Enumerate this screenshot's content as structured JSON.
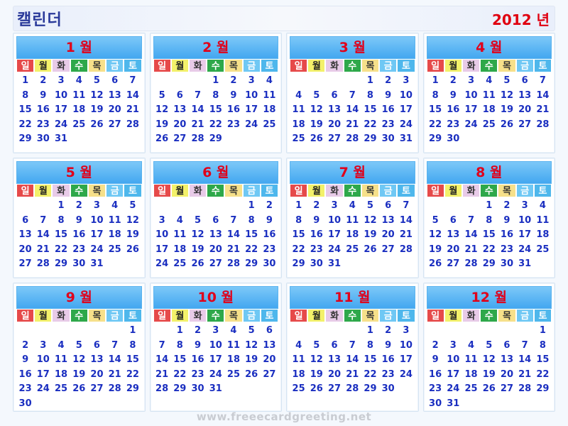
{
  "header": {
    "title": "캘린더",
    "year_label": "2012 년"
  },
  "weekdays": [
    "일",
    "월",
    "화",
    "수",
    "목",
    "금",
    "토"
  ],
  "watermark": "www.freeecardgreeting.net",
  "months": [
    {
      "label": "1 월",
      "offset": 0,
      "days": 31
    },
    {
      "label": "2 월",
      "offset": 3,
      "days": 29
    },
    {
      "label": "3 월",
      "offset": 4,
      "days": 31
    },
    {
      "label": "4 월",
      "offset": 0,
      "days": 30
    },
    {
      "label": "5 월",
      "offset": 2,
      "days": 31
    },
    {
      "label": "6 월",
      "offset": 5,
      "days": 30
    },
    {
      "label": "7 월",
      "offset": 0,
      "days": 31
    },
    {
      "label": "8 월",
      "offset": 3,
      "days": 31
    },
    {
      "label": "9 월",
      "offset": 6,
      "days": 30
    },
    {
      "label": "10 월",
      "offset": 1,
      "days": 31
    },
    {
      "label": "11 월",
      "offset": 4,
      "days": 30
    },
    {
      "label": "12 월",
      "offset": 6,
      "days": 31
    }
  ]
}
